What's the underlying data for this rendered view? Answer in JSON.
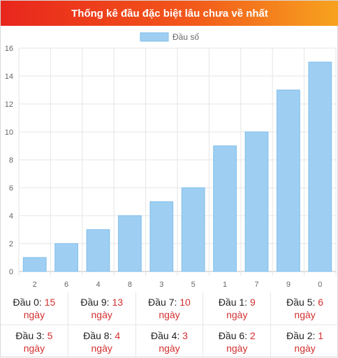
{
  "header": {
    "title": "Thống kê đầu đặc biệt lâu chưa về nhất"
  },
  "colors": {
    "bar": "#9ecff3",
    "bar_border": "#7fbce9",
    "days_text": "#d32f2f"
  },
  "chart_data": {
    "type": "bar",
    "categories": [
      "2",
      "6",
      "4",
      "8",
      "3",
      "5",
      "1",
      "7",
      "9",
      "0"
    ],
    "series": [
      {
        "name": "Đầu số",
        "values": [
          1,
          2,
          3,
          4,
          5,
          6,
          9,
          10,
          13,
          15
        ]
      }
    ],
    "yticks": [
      0,
      2,
      4,
      6,
      8,
      10,
      12,
      14,
      16
    ],
    "ylim": [
      0,
      16
    ],
    "grid": true,
    "legend": "top-center"
  },
  "stats": {
    "unit": "ngày",
    "items": [
      {
        "label": "Đầu 0:",
        "value": "15"
      },
      {
        "label": "Đầu 9:",
        "value": "13"
      },
      {
        "label": "Đầu 7:",
        "value": "10"
      },
      {
        "label": "Đầu 1:",
        "value": "9"
      },
      {
        "label": "Đầu 5:",
        "value": "6"
      },
      {
        "label": "Đầu 3:",
        "value": "5"
      },
      {
        "label": "Đầu 8:",
        "value": "4"
      },
      {
        "label": "Đầu 4:",
        "value": "3"
      },
      {
        "label": "Đầu 6:",
        "value": "2"
      },
      {
        "label": "Đầu 2:",
        "value": "1"
      }
    ]
  }
}
